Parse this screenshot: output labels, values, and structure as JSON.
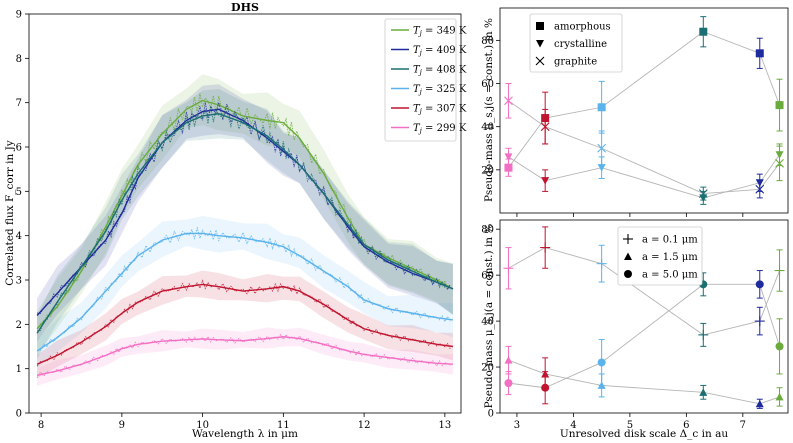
{
  "chart_data": [
    {
      "type": "line",
      "title": "DHS",
      "xlabel": "Wavelength λ in μm",
      "ylabel": "Correlated flux F_corr in Jy",
      "xlim": [
        7.85,
        13.2
      ],
      "ylim": [
        0,
        9
      ],
      "xticks": [
        8,
        9,
        10,
        11,
        12,
        13
      ],
      "yticks": [
        0,
        1,
        2,
        3,
        4,
        5,
        6,
        7,
        8,
        9
      ],
      "legend_position": "top-right",
      "series": [
        {
          "name": "T_j = 349 K",
          "legend": "= 349 K",
          "color": "#6aab3c",
          "x": [
            7.95,
            8.2,
            8.5,
            8.8,
            9.0,
            9.2,
            9.5,
            9.8,
            10.0,
            10.2,
            10.5,
            10.8,
            11.0,
            11.2,
            11.5,
            11.8,
            12.0,
            12.3,
            12.6,
            12.9,
            13.1
          ],
          "y": [
            1.9,
            2.4,
            3.2,
            4.2,
            4.9,
            5.6,
            6.3,
            6.85,
            7.05,
            6.95,
            6.7,
            6.6,
            6.55,
            6.2,
            5.4,
            4.4,
            3.8,
            3.5,
            3.25,
            3.0,
            2.8
          ]
        },
        {
          "name": "T_j = 409 K",
          "legend": "= 409 K",
          "color": "#1f2a9e",
          "x": [
            7.95,
            8.2,
            8.5,
            8.8,
            9.0,
            9.2,
            9.5,
            9.8,
            10.0,
            10.2,
            10.5,
            10.8,
            11.0,
            11.2,
            11.5,
            11.8,
            12.0,
            12.3,
            12.6,
            12.9,
            13.1
          ],
          "y": [
            2.2,
            2.7,
            3.3,
            3.9,
            4.5,
            5.3,
            6.1,
            6.6,
            6.8,
            6.85,
            6.6,
            6.2,
            5.9,
            5.6,
            4.95,
            4.2,
            3.75,
            3.4,
            3.15,
            2.95,
            2.8
          ]
        },
        {
          "name": "T_j = 408 K",
          "legend": "= 408 K",
          "color": "#1b6e72",
          "x": [
            7.95,
            8.2,
            8.5,
            8.8,
            9.0,
            9.2,
            9.5,
            9.8,
            10.0,
            10.2,
            10.5,
            10.8,
            11.0,
            11.2,
            11.5,
            11.8,
            12.0,
            12.3,
            12.6,
            12.9,
            13.1
          ],
          "y": [
            1.8,
            2.5,
            3.3,
            4.1,
            4.8,
            5.4,
            6.1,
            6.55,
            6.7,
            6.75,
            6.55,
            6.25,
            5.95,
            5.6,
            4.95,
            4.25,
            3.8,
            3.45,
            3.2,
            2.95,
            2.8
          ]
        },
        {
          "name": "T_j = 325 K",
          "legend": "= 325 K",
          "color": "#5ab3ec",
          "x": [
            7.95,
            8.2,
            8.5,
            8.8,
            9.0,
            9.2,
            9.5,
            9.8,
            10.0,
            10.2,
            10.5,
            10.8,
            11.0,
            11.2,
            11.5,
            11.8,
            12.0,
            12.3,
            12.6,
            12.9,
            13.1
          ],
          "y": [
            1.4,
            1.7,
            2.15,
            2.75,
            3.15,
            3.55,
            3.9,
            4.05,
            4.05,
            4.0,
            3.95,
            3.85,
            3.75,
            3.55,
            3.2,
            2.85,
            2.55,
            2.35,
            2.25,
            2.15,
            2.1
          ]
        },
        {
          "name": "T_j = 307 K",
          "legend": "= 307 K",
          "color": "#c0142f",
          "x": [
            7.95,
            8.2,
            8.5,
            8.8,
            9.0,
            9.2,
            9.5,
            9.8,
            10.0,
            10.2,
            10.5,
            10.8,
            11.0,
            11.2,
            11.5,
            11.8,
            12.0,
            12.3,
            12.6,
            12.9,
            13.1
          ],
          "y": [
            1.1,
            1.3,
            1.6,
            1.95,
            2.25,
            2.5,
            2.75,
            2.85,
            2.9,
            2.85,
            2.75,
            2.8,
            2.85,
            2.75,
            2.45,
            2.1,
            1.9,
            1.75,
            1.65,
            1.55,
            1.5
          ]
        },
        {
          "name": "T_j = 299 K",
          "legend": "= 299 K",
          "color": "#f36fc3",
          "x": [
            7.95,
            8.2,
            8.5,
            8.8,
            9.0,
            9.2,
            9.5,
            9.8,
            10.0,
            10.2,
            10.5,
            10.8,
            11.0,
            11.2,
            11.5,
            11.8,
            12.0,
            12.3,
            12.6,
            12.9,
            13.1
          ],
          "y": [
            0.85,
            0.95,
            1.1,
            1.3,
            1.45,
            1.55,
            1.62,
            1.65,
            1.67,
            1.65,
            1.63,
            1.68,
            1.72,
            1.68,
            1.55,
            1.4,
            1.32,
            1.25,
            1.18,
            1.12,
            1.1
          ]
        }
      ]
    },
    {
      "type": "scatter",
      "ylabel": "Pseudo-mass μ_s,j(s = const.) in %",
      "xlim": [
        2.7,
        7.8
      ],
      "ylim": [
        0,
        95
      ],
      "xticks": [
        3,
        4,
        5,
        6,
        7
      ],
      "yticks": [
        20,
        40,
        60,
        80
      ],
      "legend_position": "top-left",
      "legend": [
        "amorphous",
        "crystalline",
        "graphite"
      ],
      "series": [
        {
          "name": "amorphous",
          "marker": "square",
          "x": [
            2.85,
            3.5,
            4.5,
            6.3,
            7.3,
            7.65
          ],
          "y": [
            21,
            44,
            49,
            84,
            74,
            50
          ],
          "err": [
            4,
            12,
            12,
            7,
            7,
            12
          ],
          "colors": [
            "#f36fc3",
            "#c0142f",
            "#5ab3ec",
            "#1b6e72",
            "#1f2a9e",
            "#6aab3c"
          ]
        },
        {
          "name": "crystalline",
          "marker": "triangle-down",
          "x": [
            2.85,
            3.5,
            4.5,
            6.3,
            7.3,
            7.65
          ],
          "y": [
            26,
            15,
            21,
            7,
            14,
            27
          ],
          "err": [
            4,
            5,
            5,
            3,
            4,
            5
          ],
          "colors": [
            "#f36fc3",
            "#c0142f",
            "#5ab3ec",
            "#1b6e72",
            "#1f2a9e",
            "#6aab3c"
          ]
        },
        {
          "name": "graphite",
          "marker": "x",
          "x": [
            2.85,
            3.5,
            4.5,
            6.3,
            7.3,
            7.65
          ],
          "y": [
            52,
            40,
            30,
            9,
            11,
            23
          ],
          "err": [
            8,
            8,
            8,
            3,
            4,
            8
          ],
          "colors": [
            "#f36fc3",
            "#c0142f",
            "#5ab3ec",
            "#1b6e72",
            "#1f2a9e",
            "#6aab3c"
          ]
        }
      ]
    },
    {
      "type": "scatter",
      "xlabel": "Unresolved disk scale Δ_c in au",
      "ylabel": "Pseudo-mass μ_s,j(a = const.) in %",
      "xlim": [
        2.7,
        7.8
      ],
      "ylim": [
        0,
        84
      ],
      "xticks": [
        3,
        4,
        5,
        6,
        7
      ],
      "yticks": [
        0,
        20,
        40,
        60,
        80
      ],
      "legend_position": "top-right",
      "legend": [
        "a = 0.1 μm",
        "a = 1.5 μm",
        "a = 5.0 μm"
      ],
      "series": [
        {
          "name": "a = 0.1 μm",
          "marker": "plus",
          "x": [
            2.85,
            3.5,
            4.5,
            6.3,
            7.3,
            7.65
          ],
          "y": [
            63,
            72,
            65,
            34,
            40,
            62
          ],
          "err": [
            9,
            9,
            8,
            5,
            6,
            9
          ],
          "colors": [
            "#f36fc3",
            "#c0142f",
            "#5ab3ec",
            "#1b6e72",
            "#1f2a9e",
            "#6aab3c"
          ]
        },
        {
          "name": "a = 1.5 μm",
          "marker": "triangle-up",
          "x": [
            2.85,
            3.5,
            4.5,
            6.3,
            7.3,
            7.65
          ],
          "y": [
            23,
            17,
            12,
            9,
            4,
            7
          ],
          "err": [
            6,
            7,
            5,
            3,
            2,
            4
          ],
          "colors": [
            "#f36fc3",
            "#c0142f",
            "#5ab3ec",
            "#1b6e72",
            "#1f2a9e",
            "#6aab3c"
          ]
        },
        {
          "name": "a = 5.0 μm",
          "marker": "circle",
          "x": [
            2.85,
            3.5,
            4.5,
            6.3,
            7.3,
            7.65
          ],
          "y": [
            13,
            11,
            22,
            56,
            56,
            29
          ],
          "err": [
            5,
            7,
            10,
            5,
            6,
            12
          ],
          "colors": [
            "#f36fc3",
            "#c0142f",
            "#5ab3ec",
            "#1b6e72",
            "#1f2a9e",
            "#6aab3c"
          ]
        }
      ]
    }
  ]
}
